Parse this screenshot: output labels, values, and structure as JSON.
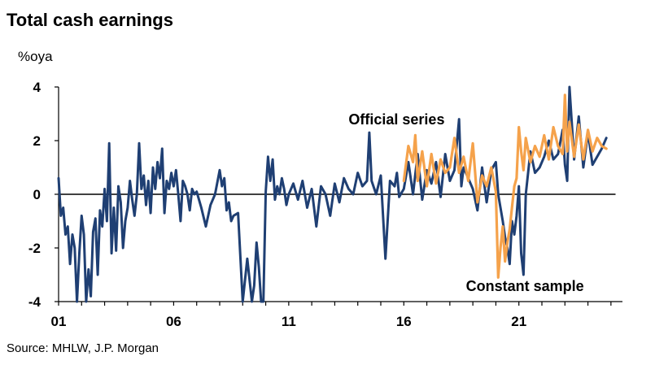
{
  "chart_data": {
    "type": "line",
    "title": "Total cash earnings",
    "ylabel": "%oya",
    "source": "Source: MHLW, J.P. Morgan",
    "xlim": [
      2001,
      2025.5
    ],
    "ylim": [
      -4,
      4
    ],
    "yticks": [
      -4,
      -2,
      0,
      2,
      4
    ],
    "xticks": [
      {
        "value": 2001,
        "label": "01"
      },
      {
        "value": 2006,
        "label": "06"
      },
      {
        "value": 2011,
        "label": "11"
      },
      {
        "value": 2016,
        "label": "16"
      },
      {
        "value": 2021,
        "label": "21"
      }
    ],
    "annotations": [
      {
        "text": "Official series",
        "x": 2013.6,
        "y": 2.6
      },
      {
        "text": "Constant sample",
        "x": 2018.7,
        "y": -3.6
      }
    ],
    "colors": {
      "official": "#1f3f73",
      "constant": "#f5a24b"
    },
    "series": [
      {
        "name": "Official series",
        "color": "#1f3f73",
        "x": [
          2001.0,
          2001.1,
          2001.2,
          2001.3,
          2001.4,
          2001.5,
          2001.6,
          2001.7,
          2001.8,
          2001.9,
          2002.0,
          2002.1,
          2002.2,
          2002.3,
          2002.4,
          2002.5,
          2002.6,
          2002.7,
          2002.8,
          2002.9,
          2003.0,
          2003.1,
          2003.2,
          2003.3,
          2003.4,
          2003.5,
          2003.6,
          2003.7,
          2003.8,
          2003.9,
          2004.0,
          2004.1,
          2004.2,
          2004.3,
          2004.4,
          2004.5,
          2004.6,
          2004.7,
          2004.8,
          2004.9,
          2005.0,
          2005.1,
          2005.2,
          2005.3,
          2005.4,
          2005.5,
          2005.6,
          2005.7,
          2005.8,
          2005.9,
          2006.0,
          2006.1,
          2006.2,
          2006.3,
          2006.4,
          2006.5,
          2006.6,
          2006.7,
          2006.8,
          2006.9,
          2007.0,
          2007.2,
          2007.4,
          2007.6,
          2007.8,
          2008.0,
          2008.1,
          2008.2,
          2008.3,
          2008.4,
          2008.5,
          2008.6,
          2008.8,
          2009.0,
          2009.2,
          2009.4,
          2009.5,
          2009.6,
          2009.7,
          2009.8,
          2009.9,
          2010.0,
          2010.1,
          2010.2,
          2010.3,
          2010.4,
          2010.5,
          2010.6,
          2010.7,
          2010.8,
          2010.9,
          2011.0,
          2011.2,
          2011.4,
          2011.6,
          2011.8,
          2012.0,
          2012.2,
          2012.4,
          2012.6,
          2012.8,
          2013.0,
          2013.2,
          2013.4,
          2013.6,
          2013.8,
          2014.0,
          2014.2,
          2014.4,
          2014.5,
          2014.6,
          2014.8,
          2015.0,
          2015.2,
          2015.4,
          2015.6,
          2015.7,
          2015.8,
          2016.0,
          2016.2,
          2016.4,
          2016.6,
          2016.8,
          2017.0,
          2017.2,
          2017.4,
          2017.6,
          2017.8,
          2018.0,
          2018.2,
          2018.4,
          2018.5,
          2018.6,
          2018.8,
          2019.0,
          2019.2,
          2019.4,
          2019.6,
          2019.8,
          2020.0,
          2020.1,
          2020.2,
          2020.3,
          2020.4,
          2020.5,
          2020.6,
          2020.7,
          2020.8,
          2020.9,
          2021.0,
          2021.1,
          2021.2,
          2021.3,
          2021.5,
          2021.7,
          2021.9,
          2022.1,
          2022.3,
          2022.5,
          2022.7,
          2022.9,
          2023.0,
          2023.1,
          2023.2,
          2023.4,
          2023.6,
          2023.8,
          2024.0,
          2024.2,
          2024.4,
          2024.6,
          2024.8
        ],
        "values": [
          0.6,
          -0.8,
          -0.5,
          -1.5,
          -1.2,
          -2.6,
          -1.5,
          -2.0,
          -4.0,
          -2.2,
          -0.8,
          -1.5,
          -4.0,
          -2.8,
          -3.8,
          -1.4,
          -0.9,
          -3.0,
          -0.6,
          -1.2,
          0.2,
          -1.0,
          1.9,
          -2.2,
          -0.5,
          -2.1,
          0.3,
          -0.3,
          -2.0,
          -1.0,
          -0.5,
          0.5,
          -0.2,
          -0.8,
          0.0,
          1.9,
          0.2,
          0.7,
          -0.4,
          0.5,
          -0.7,
          1.0,
          0.2,
          1.2,
          0.6,
          1.7,
          -0.7,
          0.5,
          0.2,
          0.8,
          0.3,
          0.9,
          0.0,
          -1.0,
          0.5,
          0.3,
          0.0,
          -0.6,
          0.2,
          0.0,
          0.1,
          -0.5,
          -1.2,
          -0.4,
          0.0,
          0.9,
          0.3,
          0.6,
          -0.6,
          -0.3,
          -1.0,
          -0.8,
          -0.7,
          -4.0,
          -2.4,
          -4.0,
          -3.4,
          -1.8,
          -2.7,
          -4.0,
          -4.0,
          0.1,
          1.4,
          0.5,
          1.3,
          -0.2,
          0.3,
          0.0,
          0.6,
          0.2,
          -0.4,
          0.0,
          0.4,
          -0.2,
          0.5,
          -0.5,
          0.2,
          -1.2,
          0.3,
          0.0,
          -0.8,
          0.4,
          -0.3,
          0.6,
          0.2,
          0.0,
          0.8,
          0.3,
          0.5,
          2.3,
          0.5,
          0.0,
          0.7,
          -2.4,
          0.5,
          0.3,
          0.8,
          -0.1,
          0.2,
          1.2,
          0.0,
          1.5,
          -0.2,
          0.9,
          0.4,
          1.2,
          -0.1,
          1.5,
          0.5,
          0.9,
          2.8,
          0.3,
          1.0,
          0.6,
          0.2,
          -0.6,
          1.0,
          -0.3,
          0.9,
          1.2,
          0.0,
          -0.5,
          -1.0,
          -1.6,
          -2.0,
          -2.6,
          -1.0,
          -1.5,
          -0.8,
          0.3,
          -2.2,
          -3.0,
          0.0,
          1.6,
          0.8,
          1.0,
          1.4,
          2.0,
          1.3,
          1.5,
          2.4,
          1.1,
          0.5,
          4.0,
          1.3,
          2.9,
          1.0,
          2.3,
          1.1,
          1.4,
          1.7,
          2.1
        ]
      },
      {
        "name": "Constant sample",
        "color": "#f5a24b",
        "x": [
          2016.0,
          2016.2,
          2016.4,
          2016.5,
          2016.6,
          2016.8,
          2017.0,
          2017.2,
          2017.4,
          2017.6,
          2017.8,
          2018.0,
          2018.2,
          2018.4,
          2018.6,
          2018.8,
          2019.0,
          2019.2,
          2019.4,
          2019.6,
          2019.8,
          2020.0,
          2020.1,
          2020.2,
          2020.3,
          2020.4,
          2020.5,
          2020.6,
          2020.7,
          2020.8,
          2020.9,
          2021.0,
          2021.1,
          2021.2,
          2021.3,
          2021.5,
          2021.7,
          2021.9,
          2022.1,
          2022.3,
          2022.5,
          2022.7,
          2022.9,
          2023.0,
          2023.1,
          2023.2,
          2023.4,
          2023.6,
          2023.8,
          2024.0,
          2024.2,
          2024.4,
          2024.6,
          2024.8
        ],
        "values": [
          0.5,
          1.8,
          1.2,
          2.2,
          0.5,
          1.6,
          0.3,
          1.5,
          0.4,
          1.3,
          0.8,
          1.0,
          2.1,
          0.8,
          1.4,
          0.5,
          1.9,
          -0.3,
          0.7,
          0.3,
          1.0,
          0.1,
          -3.1,
          -2.0,
          -1.2,
          -2.5,
          -1.8,
          -1.3,
          -0.5,
          0.3,
          0.6,
          2.5,
          1.6,
          0.9,
          2.1,
          1.2,
          1.8,
          1.4,
          2.2,
          1.3,
          2.5,
          1.8,
          1.5,
          3.7,
          1.6,
          2.7,
          1.4,
          2.6,
          1.3,
          2.4,
          1.6,
          2.1,
          1.8,
          1.7
        ]
      }
    ]
  }
}
